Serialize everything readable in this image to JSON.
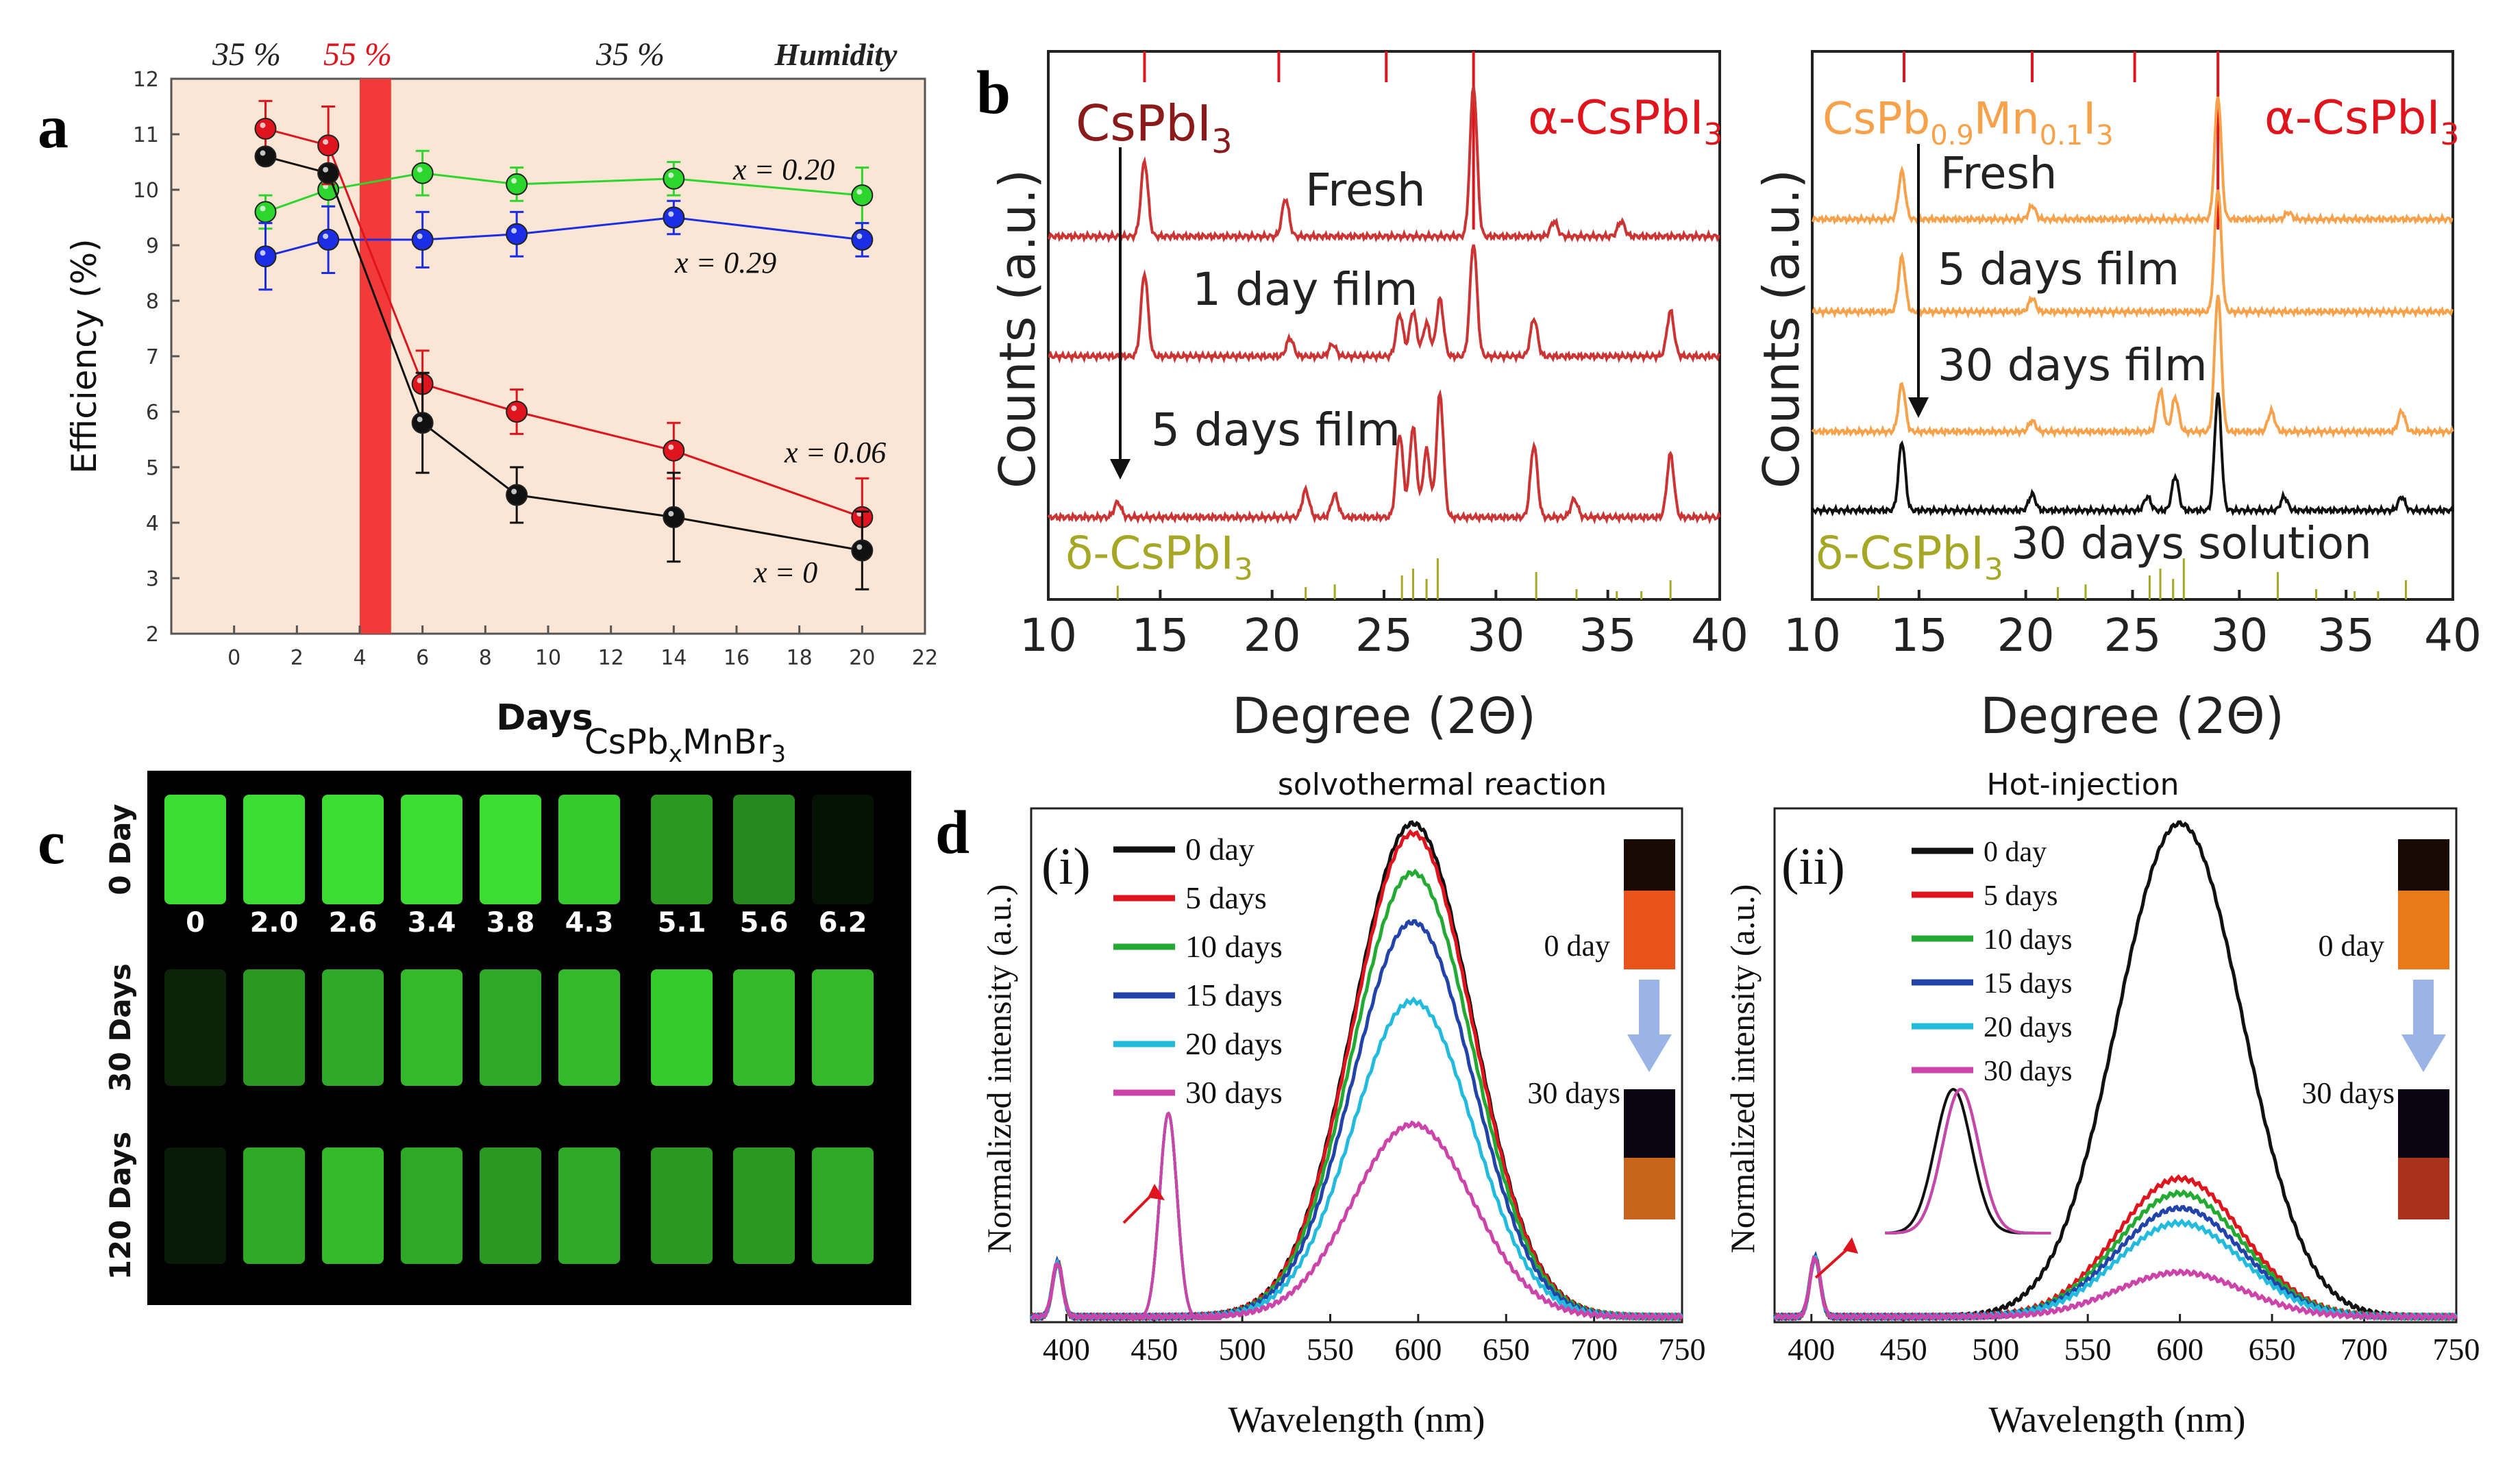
{
  "colors": {
    "black": "#111111",
    "red": "#e0141c",
    "green": "#2dd62d",
    "blue": "#1b2ee6",
    "panel_a_bg": "#fbe6d6",
    "humidity_band": "#f23a3a",
    "b_red": "#cc3333",
    "b_orange": "#f7a24a",
    "b_olive": "#a7a726",
    "d_green": "#22aa33",
    "d_blue": "#2244aa",
    "d_cyan": "#22bbdd",
    "d_magenta": "#cc44aa",
    "sample_bg": "#000000",
    "sample_green": "#3cdc3c"
  },
  "panel_labels": {
    "a": "a",
    "b": "b",
    "c": "c",
    "d": "d"
  },
  "chart_data": [
    {
      "id": "a",
      "type": "scatter",
      "title": "",
      "xlabel": "Days",
      "ylabel": "Efficiency (%)",
      "xlim": [
        -2,
        22
      ],
      "ylim": [
        2,
        12
      ],
      "xticks": [
        0,
        2,
        4,
        6,
        8,
        10,
        12,
        14,
        16,
        18,
        20,
        22
      ],
      "yticks": [
        2,
        3,
        4,
        5,
        6,
        7,
        8,
        9,
        10,
        11,
        12
      ],
      "humidity": {
        "label": "Humidity",
        "labels": [
          "35 %",
          "55 %",
          "35 %"
        ],
        "band_days": [
          4,
          5
        ]
      },
      "series": [
        {
          "name": "x = 0.20",
          "color": "#2dd62d",
          "x": [
            1,
            3,
            6,
            9,
            14,
            20
          ],
          "y": [
            9.6,
            10.0,
            10.3,
            10.1,
            10.2,
            9.9
          ],
          "err": [
            0.3,
            0.3,
            0.4,
            0.3,
            0.3,
            0.5
          ]
        },
        {
          "name": "x = 0.29",
          "color": "#1b2ee6",
          "x": [
            1,
            3,
            6,
            9,
            14,
            20
          ],
          "y": [
            8.8,
            9.1,
            9.1,
            9.2,
            9.5,
            9.1
          ],
          "err": [
            0.6,
            0.6,
            0.5,
            0.4,
            0.3,
            0.3
          ]
        },
        {
          "name": "x = 0.06",
          "color": "#e0141c",
          "x": [
            1,
            3,
            6,
            9,
            14,
            20
          ],
          "y": [
            11.1,
            10.8,
            6.5,
            6.0,
            5.3,
            4.1
          ],
          "err": [
            0.5,
            0.7,
            0.6,
            0.4,
            0.5,
            0.7
          ]
        },
        {
          "name": "x = 0",
          "color": "#111111",
          "x": [
            1,
            3,
            6,
            9,
            14,
            20
          ],
          "y": [
            10.6,
            10.3,
            5.8,
            4.5,
            4.1,
            3.5
          ],
          "err": [
            0.0,
            0.0,
            0.9,
            0.5,
            0.8,
            0.7
          ]
        }
      ]
    },
    {
      "id": "b-left",
      "type": "line",
      "xlabel": "Degree (2Θ)",
      "ylabel": "Counts (a.u.)",
      "xlim": [
        10,
        40
      ],
      "xticks": [
        10,
        15,
        20,
        25,
        30,
        35,
        40
      ],
      "sample": "CsPbI",
      "sample_sub": "3",
      "ref_top": "α-CsPbI",
      "ref_top_sub": "3",
      "ref_bottom": "δ-CsPbI",
      "ref_bottom_sub": "3",
      "ref_top_peaks": [
        14.3,
        20.3,
        25.1,
        29.0
      ],
      "ref_bottom_peaks": [
        13.1,
        21.5,
        22.8,
        25.8,
        26.3,
        26.9,
        27.4,
        31.8,
        33.6,
        35.4,
        36.5,
        37.8
      ],
      "series": [
        {
          "name": "Fresh",
          "color": "#cc3333",
          "peaks": [
            [
              14.3,
              0.5
            ],
            [
              20.6,
              0.25
            ],
            [
              29.0,
              1.0
            ],
            [
              32.6,
              0.1
            ],
            [
              35.6,
              0.1
            ]
          ]
        },
        {
          "name": "1 day film",
          "color": "#cc3333",
          "peaks": [
            [
              14.3,
              0.55
            ],
            [
              20.8,
              0.12
            ],
            [
              22.7,
              0.08
            ],
            [
              25.7,
              0.28
            ],
            [
              26.3,
              0.3
            ],
            [
              26.9,
              0.22
            ],
            [
              27.5,
              0.38
            ],
            [
              29.0,
              0.75
            ],
            [
              31.7,
              0.25
            ],
            [
              37.8,
              0.3
            ]
          ]
        },
        {
          "name": "5 days film",
          "color": "#cc3333",
          "peaks": [
            [
              13.1,
              0.1
            ],
            [
              21.5,
              0.18
            ],
            [
              22.8,
              0.15
            ],
            [
              25.7,
              0.55
            ],
            [
              26.3,
              0.6
            ],
            [
              26.9,
              0.45
            ],
            [
              27.5,
              0.82
            ],
            [
              31.7,
              0.48
            ],
            [
              33.5,
              0.12
            ],
            [
              37.8,
              0.42
            ]
          ]
        }
      ]
    },
    {
      "id": "b-right",
      "type": "line",
      "xlabel": "Degree (2Θ)",
      "ylabel": "Counts (a.u.)",
      "xlim": [
        10,
        40
      ],
      "xticks": [
        10,
        15,
        20,
        25,
        30,
        35,
        40
      ],
      "sample": "CsPb",
      "sample_sub1": "0.9",
      "sample_mid": "Mn",
      "sample_sub2": "0.1",
      "sample_end": "I",
      "sample_sub3": "3",
      "ref_top": "α-CsPbI",
      "ref_top_sub": "3",
      "ref_bottom": "δ-CsPbI",
      "ref_bottom_sub": "3",
      "ref_top_peaks": [
        14.3,
        20.3,
        25.1,
        29.0
      ],
      "ref_bottom_peaks": [
        13.1,
        21.5,
        22.8,
        25.8,
        26.3,
        26.9,
        27.4,
        31.8,
        33.6,
        35.4,
        36.5,
        37.8
      ],
      "series": [
        {
          "name": "Fresh",
          "color": "#f7a24a",
          "peaks": [
            [
              14.2,
              0.35
            ],
            [
              20.3,
              0.1
            ],
            [
              29.0,
              0.9
            ],
            [
              32.3,
              0.05
            ]
          ]
        },
        {
          "name": "5 days film",
          "color": "#f7a24a",
          "peaks": [
            [
              14.2,
              0.4
            ],
            [
              20.3,
              0.1
            ],
            [
              29.0,
              0.9
            ]
          ]
        },
        {
          "name": "30 days film",
          "color": "#f7a24a",
          "peaks": [
            [
              14.2,
              0.35
            ],
            [
              20.3,
              0.08
            ],
            [
              26.3,
              0.3
            ],
            [
              27.0,
              0.25
            ],
            [
              29.0,
              1.0
            ],
            [
              31.5,
              0.15
            ],
            [
              37.6,
              0.15
            ]
          ]
        },
        {
          "name": "30 days solution",
          "color": "#111111",
          "peaks": [
            [
              14.2,
              0.5
            ],
            [
              20.3,
              0.12
            ],
            [
              25.7,
              0.1
            ],
            [
              27.0,
              0.25
            ],
            [
              29.0,
              0.85
            ],
            [
              32.1,
              0.1
            ],
            [
              37.6,
              0.1
            ]
          ]
        }
      ]
    },
    {
      "id": "c",
      "type": "table",
      "title": "CsPb",
      "title_sub": "x",
      "title_end": "MnBr",
      "title_sub2": "3",
      "row_labels": [
        "0 Day",
        "30 Days",
        "120 Days"
      ],
      "columns": [
        "0",
        "2.0",
        "2.6",
        "3.4",
        "3.8",
        "4.3",
        "5.1",
        "5.6",
        "6.2"
      ],
      "brightness": [
        [
          1.0,
          1.0,
          1.0,
          1.0,
          1.0,
          0.95,
          0.8,
          0.75,
          0.15
        ],
        [
          0.3,
          0.8,
          0.85,
          0.9,
          0.85,
          0.9,
          0.95,
          0.9,
          0.9
        ],
        [
          0.25,
          0.85,
          0.9,
          0.85,
          0.8,
          0.85,
          0.8,
          0.8,
          0.85
        ]
      ]
    },
    {
      "id": "d-i",
      "type": "line",
      "title": "solvothermal reaction",
      "panel_id": "(i)",
      "xlabel": "Wavelength (nm)",
      "ylabel": "Normalized intensity (a.u.)",
      "xlim": [
        380,
        750
      ],
      "xticks": [
        400,
        450,
        500,
        550,
        600,
        650,
        700,
        750
      ],
      "vial_labels": [
        "0 day",
        "30 days"
      ],
      "series": [
        {
          "name": "0 day",
          "color": "#111111",
          "peak": 1.0
        },
        {
          "name": "5 days",
          "color": "#e0141c",
          "peak": 0.98
        },
        {
          "name": "10 days",
          "color": "#22aa33",
          "peak": 0.9
        },
        {
          "name": "15 days",
          "color": "#2244aa",
          "peak": 0.8
        },
        {
          "name": "20 days",
          "color": "#22bbdd",
          "peak": 0.64
        },
        {
          "name": "30 days",
          "color": "#cc44aa",
          "peak": 0.39
        }
      ]
    },
    {
      "id": "d-ii",
      "type": "line",
      "title": "Hot-injection",
      "panel_id": "(ii)",
      "xlabel": "Wavelength (nm)",
      "ylabel": "Normalized intensity (a.u.)",
      "xlim": [
        380,
        750
      ],
      "xticks": [
        400,
        450,
        500,
        550,
        600,
        650,
        700,
        750
      ],
      "vial_labels": [
        "0 day",
        "30 days"
      ],
      "series": [
        {
          "name": "0 day",
          "color": "#111111",
          "peak": 1.0
        },
        {
          "name": "5 days",
          "color": "#e0141c",
          "peak": 0.28
        },
        {
          "name": "10 days",
          "color": "#22aa33",
          "peak": 0.25
        },
        {
          "name": "15 days",
          "color": "#2244aa",
          "peak": 0.22
        },
        {
          "name": "20 days",
          "color": "#22bbdd",
          "peak": 0.19
        },
        {
          "name": "30 days",
          "color": "#cc44aa",
          "peak": 0.09
        }
      ]
    }
  ]
}
